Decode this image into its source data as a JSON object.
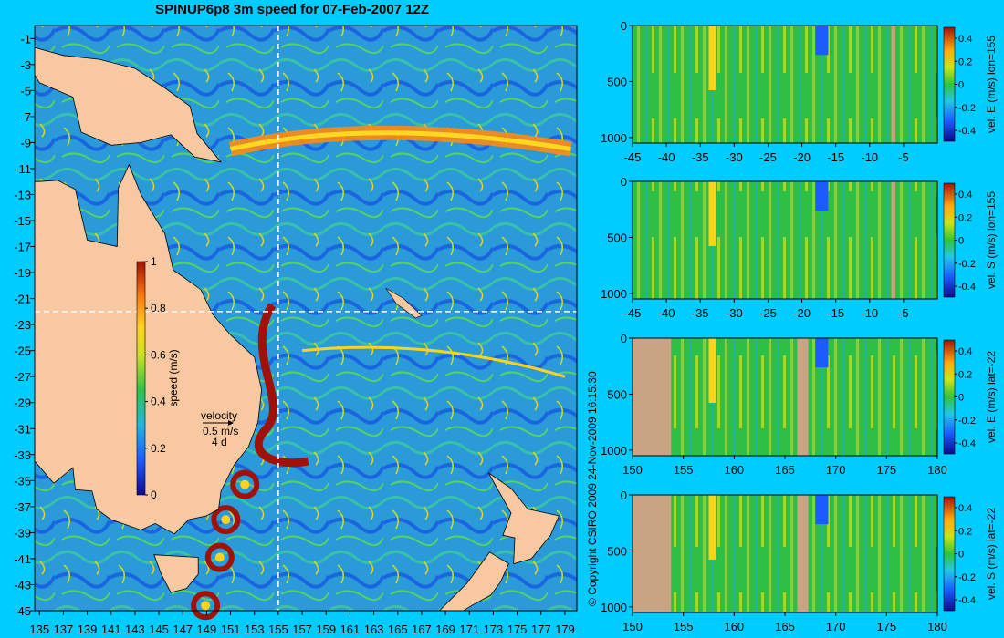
{
  "title": "SPINUP6p8 3m speed for 07-Feb-2007 12Z",
  "copyright": "© Copyright CSIRO 2009   24-Nov-2009 16:15:30",
  "colors": {
    "background": "#00ccff",
    "land": "#f8c8a0",
    "section_land": "#c8a484",
    "crosshair": "#ffffff"
  },
  "chart_data": [
    {
      "type": "heatmap",
      "name": "speed-map",
      "x_ticks": [
        135,
        137,
        139,
        141,
        143,
        145,
        147,
        149,
        151,
        153,
        155,
        157,
        159,
        161,
        163,
        165,
        167,
        169,
        171,
        173,
        175,
        177,
        179
      ],
      "y_ticks": [
        -1,
        -3,
        -5,
        -7,
        -9,
        -11,
        -13,
        -15,
        -17,
        -19,
        -21,
        -23,
        -25,
        -27,
        -29,
        -31,
        -33,
        -35,
        -37,
        -39,
        -41,
        -43,
        -45
      ],
      "xlim": [
        134.6,
        180
      ],
      "ylim": [
        -45,
        0
      ],
      "crosshair": {
        "lon": 155,
        "lat": -22
      },
      "colorbar": {
        "label": "speed (m/s)",
        "ticks": [
          0,
          0.2,
          0.4,
          0.6,
          0.8,
          1
        ],
        "range": [
          0,
          1
        ]
      },
      "velocity_key": {
        "label": "velocity",
        "speed": "0.5 m/s",
        "time": "4 d"
      },
      "eddies": [
        {
          "lon": 152.2,
          "lat": -35.3
        },
        {
          "lon": 150.6,
          "lat": -38.0
        },
        {
          "lon": 150.1,
          "lat": -40.9
        },
        {
          "lon": 148.9,
          "lat": -44.6
        }
      ]
    },
    {
      "type": "heatmap",
      "name": "section-e-lon155",
      "colorbar_label": "vel. E (m/s) lon=155",
      "x_ticks": [
        "-45",
        "-40",
        "-35",
        "-30",
        "-25",
        "-20",
        "-15",
        "-10",
        "-5"
      ],
      "xlim": [
        -45,
        0
      ],
      "y_ticks": [
        "0",
        "500",
        "1000"
      ],
      "ylim": [
        1050,
        0
      ],
      "colorbar_ticks": [
        "0.4",
        "0.2",
        "0",
        "-0.2",
        "-0.4"
      ],
      "land_columns": [
        [
          -6.8,
          -6.2
        ]
      ]
    },
    {
      "type": "heatmap",
      "name": "section-s-lon155",
      "colorbar_label": "vel. S (m/s) lon=155",
      "x_ticks": [
        "-45",
        "-40",
        "-35",
        "-30",
        "-25",
        "-20",
        "-15",
        "-10",
        "-5"
      ],
      "xlim": [
        -45,
        0
      ],
      "y_ticks": [
        "0",
        "500",
        "1000"
      ],
      "ylim": [
        1050,
        0
      ],
      "colorbar_ticks": [
        "0.4",
        "0.2",
        "0",
        "-0.2",
        "-0.4"
      ],
      "land_columns": [
        [
          -6.8,
          -6.2
        ]
      ]
    },
    {
      "type": "heatmap",
      "name": "section-e-lat22",
      "colorbar_label": "vel. E (m/s) lat=-22",
      "x_ticks": [
        "150",
        "155",
        "160",
        "165",
        "170",
        "175",
        "180"
      ],
      "xlim": [
        150,
        180
      ],
      "y_ticks": [
        "0",
        "500",
        "1000"
      ],
      "ylim": [
        1050,
        0
      ],
      "colorbar_ticks": [
        "0.4",
        "0.2",
        "0",
        "-0.2",
        "-0.4"
      ],
      "land_columns": [
        [
          150,
          153.8
        ],
        [
          166.2,
          167.3
        ]
      ]
    },
    {
      "type": "heatmap",
      "name": "section-s-lat22",
      "colorbar_label": "vel. S (m/s) lat=-22",
      "x_ticks": [
        "150",
        "155",
        "160",
        "165",
        "170",
        "175",
        "180"
      ],
      "xlim": [
        150,
        180
      ],
      "y_ticks": [
        "0",
        "500",
        "1000"
      ],
      "ylim": [
        1050,
        0
      ],
      "colorbar_ticks": [
        "0.4",
        "0.2",
        "0",
        "-0.2",
        "-0.4"
      ],
      "land_columns": [
        [
          150,
          153.8
        ],
        [
          166.2,
          167.3
        ]
      ]
    }
  ]
}
